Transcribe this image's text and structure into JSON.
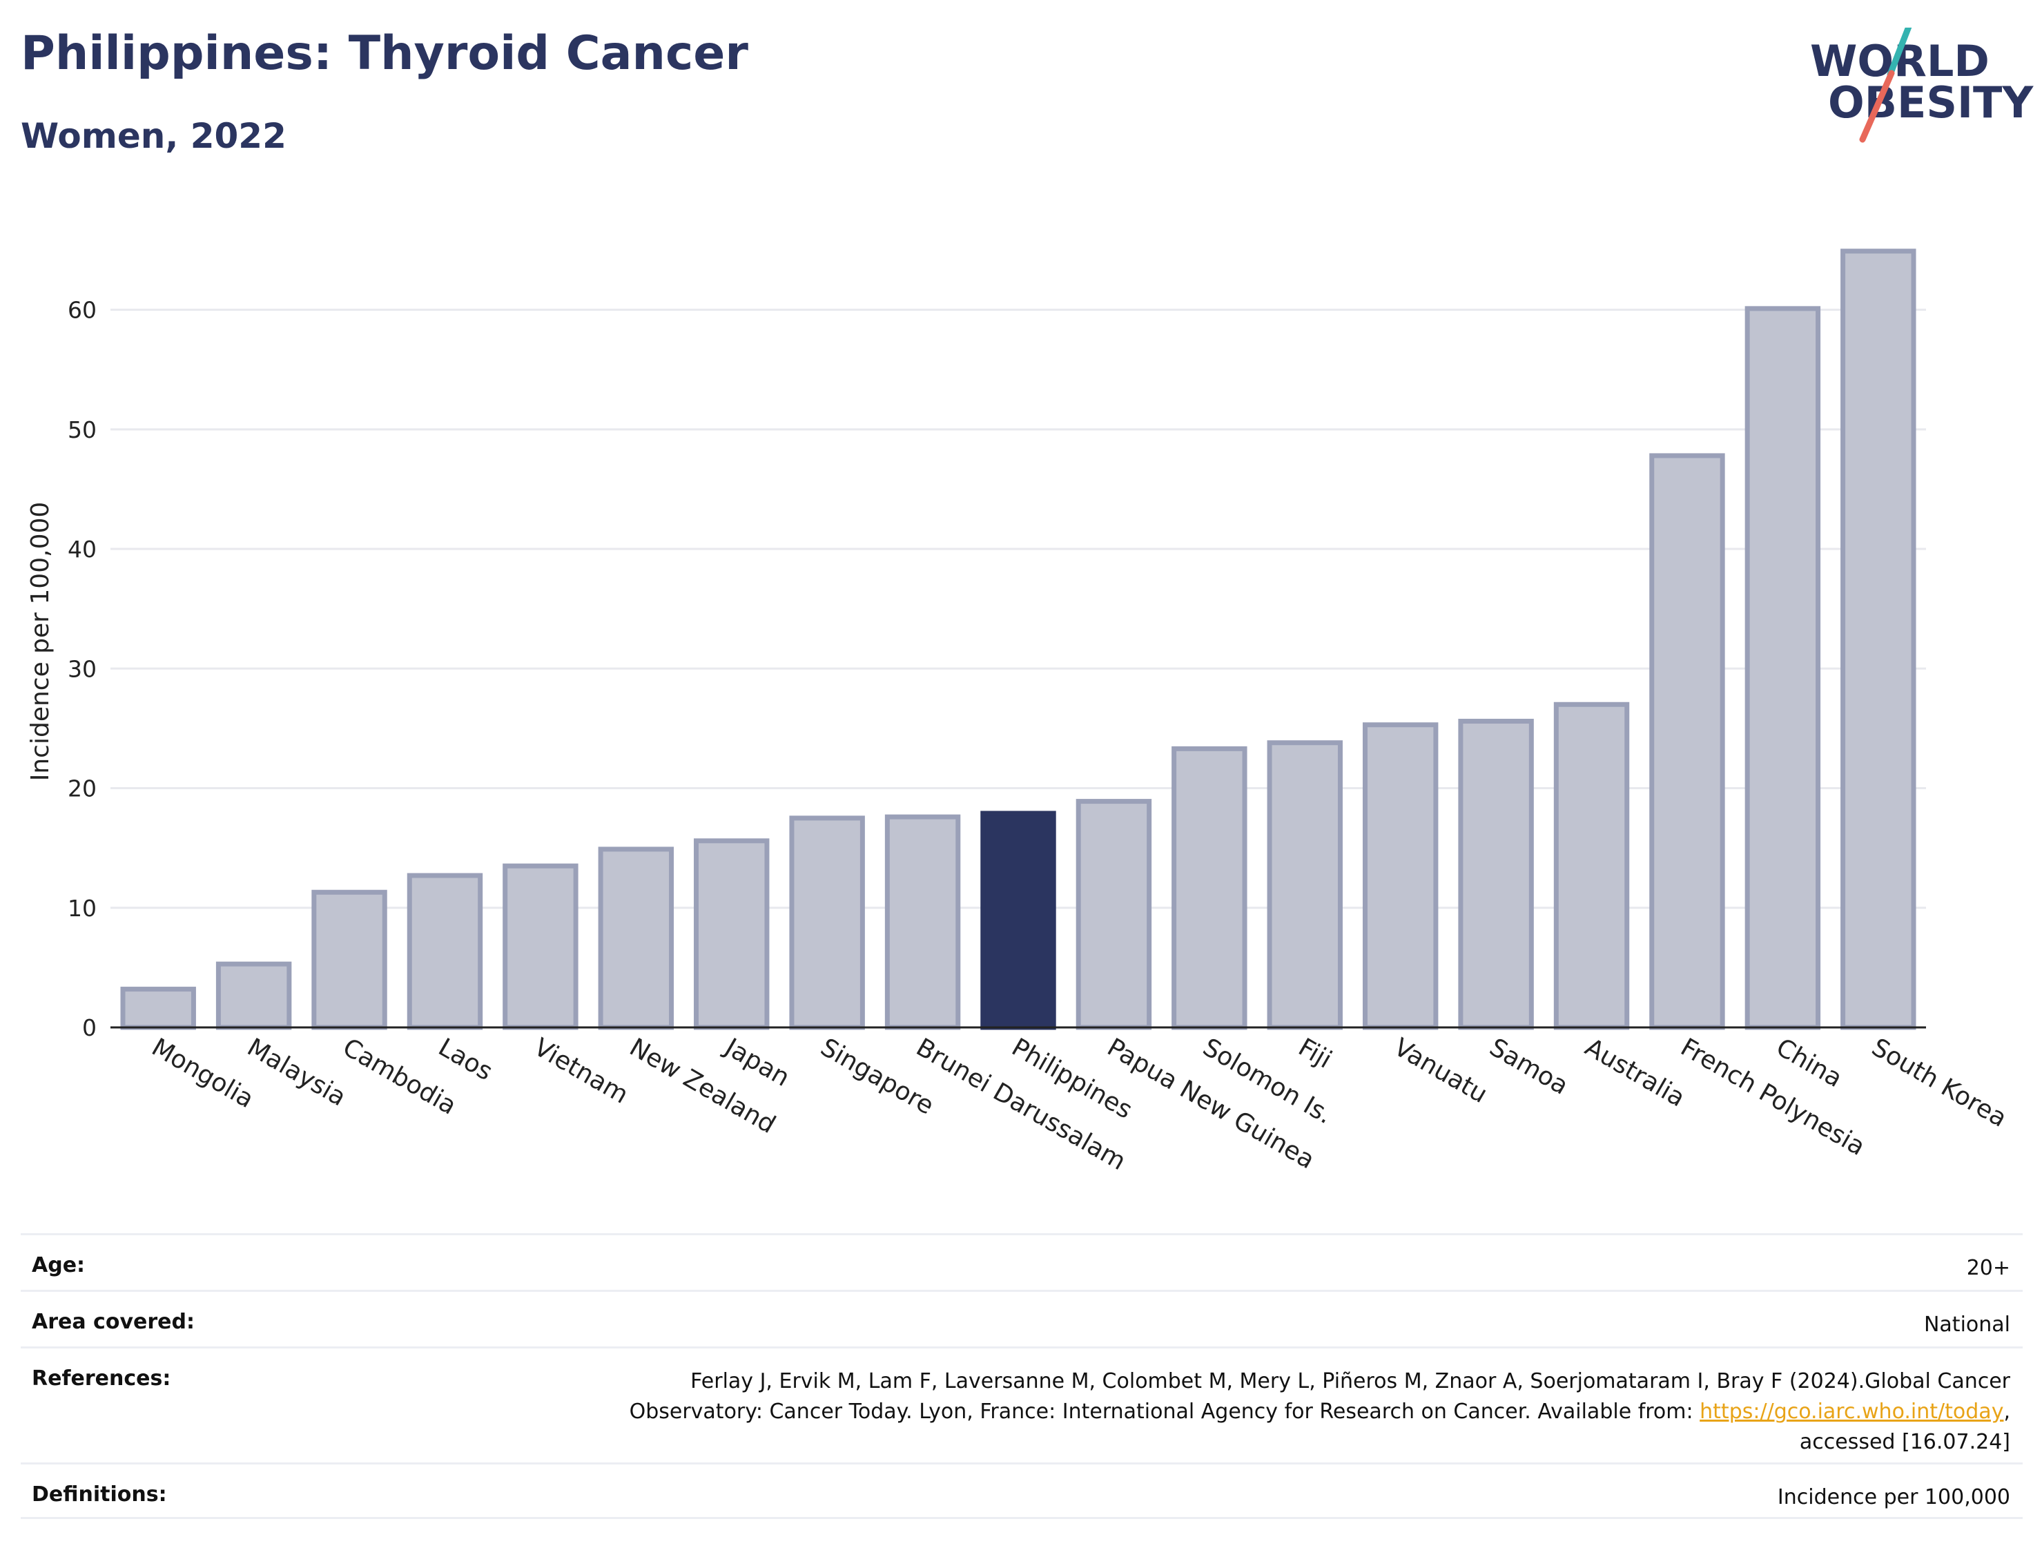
{
  "header": {
    "title": "Philippines: Thyroid Cancer",
    "subtitle": "Women, 2022"
  },
  "logo": {
    "line1": "WORLD",
    "line2": "OBESITY",
    "slash_colors": [
      "#34b3b0",
      "#e8685a"
    ]
  },
  "chart_data": {
    "type": "bar",
    "ylabel": "Incidence per 100,000",
    "ylim": [
      0,
      68
    ],
    "yticks": [
      0,
      10,
      20,
      30,
      40,
      50,
      60
    ],
    "grid": true,
    "highlight": "Philippines",
    "colors": {
      "bar": "#c0c3d0",
      "bar_border": "#9aa0b8",
      "highlight": "#2b3560"
    },
    "categories": [
      "Mongolia",
      "Malaysia",
      "Cambodia",
      "Laos",
      "Vietnam",
      "New Zealand",
      "Japan",
      "Singapore",
      "Brunei Darussalam",
      "Philippines",
      "Papua New Guinea",
      "Solomon Is.",
      "Fiji",
      "Vanuatu",
      "Samoa",
      "Australia",
      "French Polynesia",
      "China",
      "South Korea"
    ],
    "values": [
      3.2,
      5.3,
      11.3,
      12.7,
      13.5,
      14.9,
      15.6,
      17.5,
      17.6,
      17.9,
      18.9,
      23.3,
      23.8,
      25.3,
      25.6,
      27.0,
      47.8,
      60.1,
      64.9
    ]
  },
  "meta": {
    "age_label": "Age:",
    "age_value": "20+",
    "area_label": "Area covered:",
    "area_value": "National",
    "references_label": "References:",
    "references_line1": "Ferlay J, Ervik M, Lam F, Laversanne M, Colombet M, Mery L, Piñeros M, Znaor A, Soerjomataram I, Bray F (2024).Global Cancer",
    "references_line2_prefix": "Observatory: Cancer Today. Lyon, France: International Agency for Research on Cancer. Available from: ",
    "references_link": "https://gco.iarc.who.int/today",
    "references_line2_suffix": ",",
    "references_line3": "accessed [16.07.24]",
    "definitions_label": "Definitions:",
    "definitions_value": "Incidence per 100,000"
  }
}
